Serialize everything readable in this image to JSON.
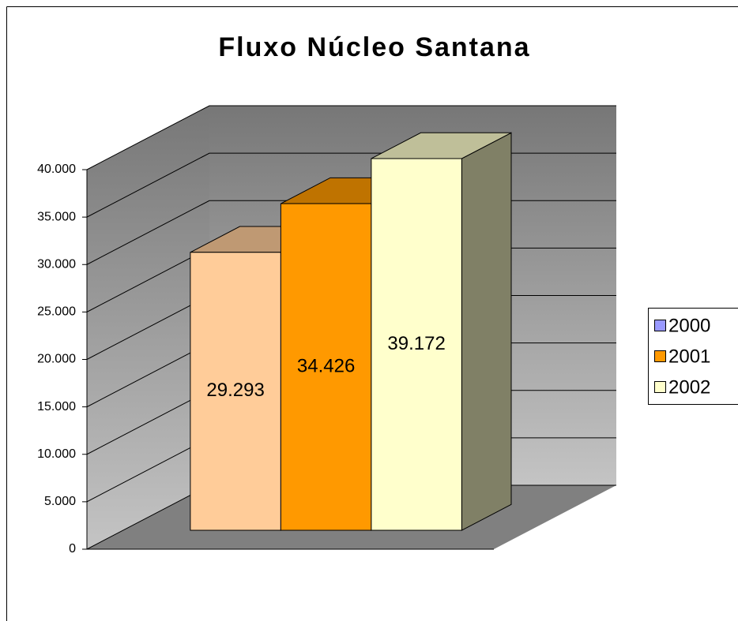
{
  "chart_data": {
    "type": "bar3d",
    "title": "Fluxo Núcleo Santana",
    "series": [
      {
        "name": "2000",
        "color": "#9999ff",
        "bar_color": "#ffcc99",
        "values": [
          29293
        ],
        "value_labels": [
          "29.293"
        ]
      },
      {
        "name": "2001",
        "color": "#ff9900",
        "bar_color": "#ff9900",
        "values": [
          34426
        ],
        "value_labels": [
          "34.426"
        ]
      },
      {
        "name": "2002",
        "color": "#ffffcc",
        "bar_color": "#ffffcc",
        "values": [
          39172
        ],
        "value_labels": [
          "39.172"
        ]
      }
    ],
    "ylim": [
      0,
      40000
    ],
    "yticks": [
      0,
      {
        "value": 5000,
        "label": "5.000"
      },
      {
        "value": 10000,
        "label": "10.000"
      },
      {
        "value": 15000,
        "label": "15.000"
      },
      {
        "value": 20000,
        "label": "20.000"
      },
      {
        "value": 25000,
        "label": "25.000"
      },
      {
        "value": 30000,
        "label": "30.000"
      },
      {
        "value": 35000,
        "label": "35.000"
      },
      {
        "value": 40000,
        "label": "40.000"
      }
    ],
    "grid": true,
    "legend": "right"
  }
}
